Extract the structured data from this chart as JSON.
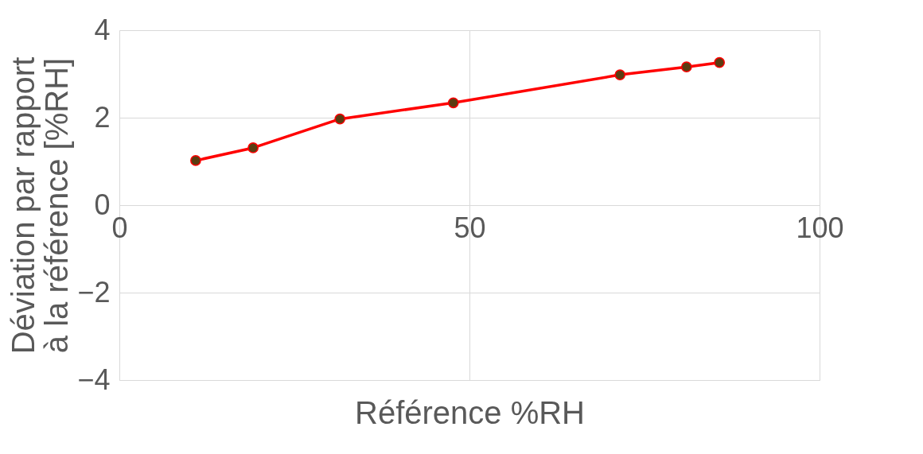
{
  "chart_data": {
    "type": "line",
    "xlabel": "Référence %RH",
    "ylabel": "Déviation par rapport à la référence [%RH]",
    "x": [
      10.9,
      19.1,
      31.5,
      47.7,
      71.5,
      81.0,
      85.7
    ],
    "series": [
      {
        "color": "#ff0000",
        "values": [
          1.02,
          1.31,
          1.97,
          2.34,
          2.98,
          3.16,
          3.26
        ]
      }
    ],
    "xlim": [
      0,
      100
    ],
    "xticks": [
      0,
      50,
      100
    ],
    "ylim": [
      -4,
      4
    ],
    "yticks": [
      -4,
      -2,
      0,
      2,
      4
    ],
    "grid": true,
    "marker": "circle",
    "line_style": "solid",
    "legend": false
  }
}
